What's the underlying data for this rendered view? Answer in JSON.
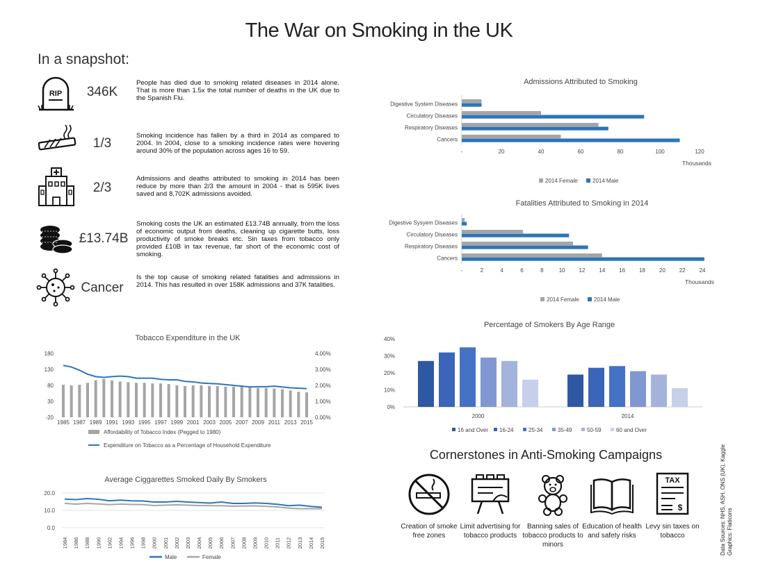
{
  "title": "The War on Smoking in the UK",
  "snapshot_heading": "In a snapshot:",
  "stats": [
    {
      "icon": "tombstone-icon",
      "value": "346K",
      "text": "People has died due to smoking related diseases in 2014 alone. That is more than 1.5x the total number of deaths in the UK due to the Spanish Flu."
    },
    {
      "icon": "cigarette-icon",
      "value": "1/3",
      "text": "Smoking incidence has fallen by a third in 2014 as compared to 2004. In 2004, close to a smoking incidence rates were hovering around 30% of the population across ages 16 to 59."
    },
    {
      "icon": "hospital-icon",
      "value": "2/3",
      "text": "Admissions and deaths attributed to smoking in 2014 has been reduce by more than 2/3 the amount in 2004 - that is 595K lives saved and 8,702K admissions avoided."
    },
    {
      "icon": "coins-icon",
      "value": "£13.74B",
      "text": "Smoking costs the UK an estimated £13.74B annually, from the loss of economic output from deaths, cleaning up cigarette butts, loss productivity of smoke breaks etc. Sin taxes from tobacco only provided £10B in tax revenue, far short of the economic cost of smoking."
    },
    {
      "icon": "virus-icon",
      "value": "Cancer",
      "text": "Is the top cause of smoking related fatalities and admissions in 2014. This has resulted in over 158K admissions and 37K fatalities."
    }
  ],
  "colors": {
    "male": "#2e75b6",
    "female": "#a5a5a5"
  },
  "chart_data": [
    {
      "id": "admissions",
      "type": "bar",
      "orientation": "horizontal",
      "title": "Admissions Attributed to Smoking",
      "categories": [
        "Digestive System Diseases",
        "Circulatory Diseases",
        "Respiratory Diseases",
        "Cancers"
      ],
      "series": [
        {
          "name": "2014 Female",
          "values": [
            10,
            40,
            69,
            50
          ]
        },
        {
          "name": "2014 Male",
          "values": [
            10,
            92,
            74,
            110
          ]
        }
      ],
      "xlim": [
        0,
        120
      ],
      "xticks": [
        "-",
        "20",
        "40",
        "60",
        "80",
        "100",
        "120"
      ],
      "xlabel": "Thousands"
    },
    {
      "id": "fatalities",
      "type": "bar",
      "orientation": "horizontal",
      "title": "Fatalities Attributed to Smoking in 2014",
      "categories": [
        "Digestive Sysyem Diseases",
        "Circulatory Diseases",
        "Respiratory Diseases",
        "Cancers"
      ],
      "series": [
        {
          "name": "2014 Female",
          "values": [
            0.3,
            6.1,
            11.1,
            14.0
          ]
        },
        {
          "name": "2014 Male",
          "values": [
            0.5,
            10.7,
            12.6,
            24.2
          ]
        }
      ],
      "xlim": [
        0,
        24
      ],
      "xticks": [
        "-",
        "2",
        "4",
        "6",
        "8",
        "10",
        "12",
        "14",
        "16",
        "18",
        "20",
        "22",
        "24"
      ],
      "xlabel": "Thousands"
    },
    {
      "id": "expenditure",
      "type": "bar+line",
      "title": "Tobacco Expenditure  in the UK",
      "x": [
        "1985",
        "1986",
        "1987",
        "1988",
        "1989",
        "1990",
        "1991",
        "1992",
        "1993",
        "1994",
        "1995",
        "1996",
        "1997",
        "1998",
        "1999",
        "2000",
        "2001",
        "2002",
        "2003",
        "2004",
        "2005",
        "2006",
        "2007",
        "2008",
        "2009",
        "2010",
        "2011",
        "2012",
        "2013",
        "2014",
        "2015"
      ],
      "xticks": [
        "1985",
        "1987",
        "1989",
        "1991",
        "1993",
        "1995",
        "1997",
        "1999",
        "2001",
        "2003",
        "2005",
        "2007",
        "2009",
        "2011",
        "2013",
        "2015"
      ],
      "series": [
        {
          "name": "Affordability of Tobacco Index (Pegged to 1980)",
          "axis": "left",
          "values": [
            82,
            80,
            82,
            88,
            96,
            100,
            96,
            92,
            90,
            88,
            88,
            86,
            86,
            84,
            80,
            78,
            80,
            80,
            78,
            78,
            76,
            76,
            76,
            74,
            72,
            72,
            70,
            68,
            64,
            60,
            58
          ]
        },
        {
          "name": "Expenditure on Tobacco as a Percentage of Household Expenditure",
          "axis": "right",
          "values": [
            3.25,
            3.15,
            2.95,
            2.7,
            2.55,
            2.5,
            2.55,
            2.58,
            2.55,
            2.45,
            2.45,
            2.45,
            2.38,
            2.35,
            2.35,
            2.25,
            2.22,
            2.15,
            2.12,
            2.1,
            2.05,
            2.0,
            1.95,
            1.9,
            1.92,
            1.92,
            1.95,
            1.9,
            1.85,
            1.82,
            1.8
          ]
        }
      ],
      "yleft": [
        -20,
        180
      ],
      "yleft_ticks": [
        "-20",
        "30",
        "80",
        "130",
        "180"
      ],
      "yright": [
        0,
        4
      ],
      "yright_ticks": [
        "0.00%",
        "1.00%",
        "2.00%",
        "3.00%",
        "4.00%"
      ]
    },
    {
      "id": "cigarettes",
      "type": "line",
      "title": "Average Ciggarettes Smoked Daily By Smokers",
      "x": [
        "1984",
        "1986",
        "1988",
        "1990",
        "1992",
        "1994",
        "1996",
        "1998",
        "2000",
        "2001",
        "2002",
        "2003",
        "2004",
        "2005",
        "2006",
        "2007",
        "2008",
        "2009",
        "2010",
        "2011",
        "2012",
        "2013",
        "2014",
        "2015"
      ],
      "series": [
        {
          "name": "Male",
          "values": [
            16.5,
            16.2,
            16.8,
            16.4,
            15.5,
            15.9,
            15.5,
            15.4,
            14.8,
            14.8,
            15.2,
            14.8,
            14.5,
            14.2,
            14.8,
            14.0,
            14.0,
            14.3,
            14.0,
            13.5,
            12.7,
            13.0,
            12.3,
            11.8
          ]
        },
        {
          "name": "Female",
          "values": [
            14.0,
            13.6,
            14.0,
            13.7,
            13.3,
            13.6,
            13.4,
            13.3,
            12.8,
            13.0,
            13.2,
            13.0,
            12.8,
            12.7,
            12.7,
            12.4,
            12.5,
            12.6,
            12.3,
            12.0,
            11.3,
            11.0,
            11.0,
            11.0
          ]
        }
      ],
      "ylim": [
        0,
        20
      ],
      "yticks": [
        "0.0",
        "10.0",
        "20.0"
      ]
    },
    {
      "id": "age",
      "type": "bar",
      "title": "Percentage of Smokers By Age Range",
      "categories": [
        "2000",
        "2014"
      ],
      "series": [
        {
          "name": "16 and Over",
          "color": "#2f58a3",
          "values": [
            27,
            19
          ]
        },
        {
          "name": "16-24",
          "color": "#3a65b8",
          "values": [
            32,
            23
          ]
        },
        {
          "name": "25-34",
          "color": "#4472c4",
          "values": [
            35,
            24
          ]
        },
        {
          "name": "35-49",
          "color": "#8197d1",
          "values": [
            29,
            21
          ]
        },
        {
          "name": "50-59",
          "color": "#a4b3dc",
          "values": [
            27,
            19
          ]
        },
        {
          "name": "60 and Over",
          "color": "#c7d0ea",
          "values": [
            16,
            11
          ]
        }
      ],
      "ylim": [
        0,
        40
      ],
      "yticks": [
        "0%",
        "10%",
        "20%",
        "30%",
        "40%"
      ]
    }
  ],
  "cornerstones": {
    "heading": "Cornerstones in Anti-Smoking Campaigns",
    "items": [
      {
        "icon": "no-smoking-icon",
        "label": "Creation of smoke free zones"
      },
      {
        "icon": "billboard-icon",
        "label": "Limit advertising for tobacco products"
      },
      {
        "icon": "teddy-bear-icon",
        "label": "Banning sales of tobacco products to minors"
      },
      {
        "icon": "open-book-icon",
        "label": "Education of health and safety risks"
      },
      {
        "icon": "tax-form-icon",
        "label": "Levy sin taxes on tobacco",
        "tax_text": "TAX"
      }
    ]
  },
  "sources": "Data Sources: NHS, ASH, ONS (UK), Kaggle Graphics: Flaticons"
}
